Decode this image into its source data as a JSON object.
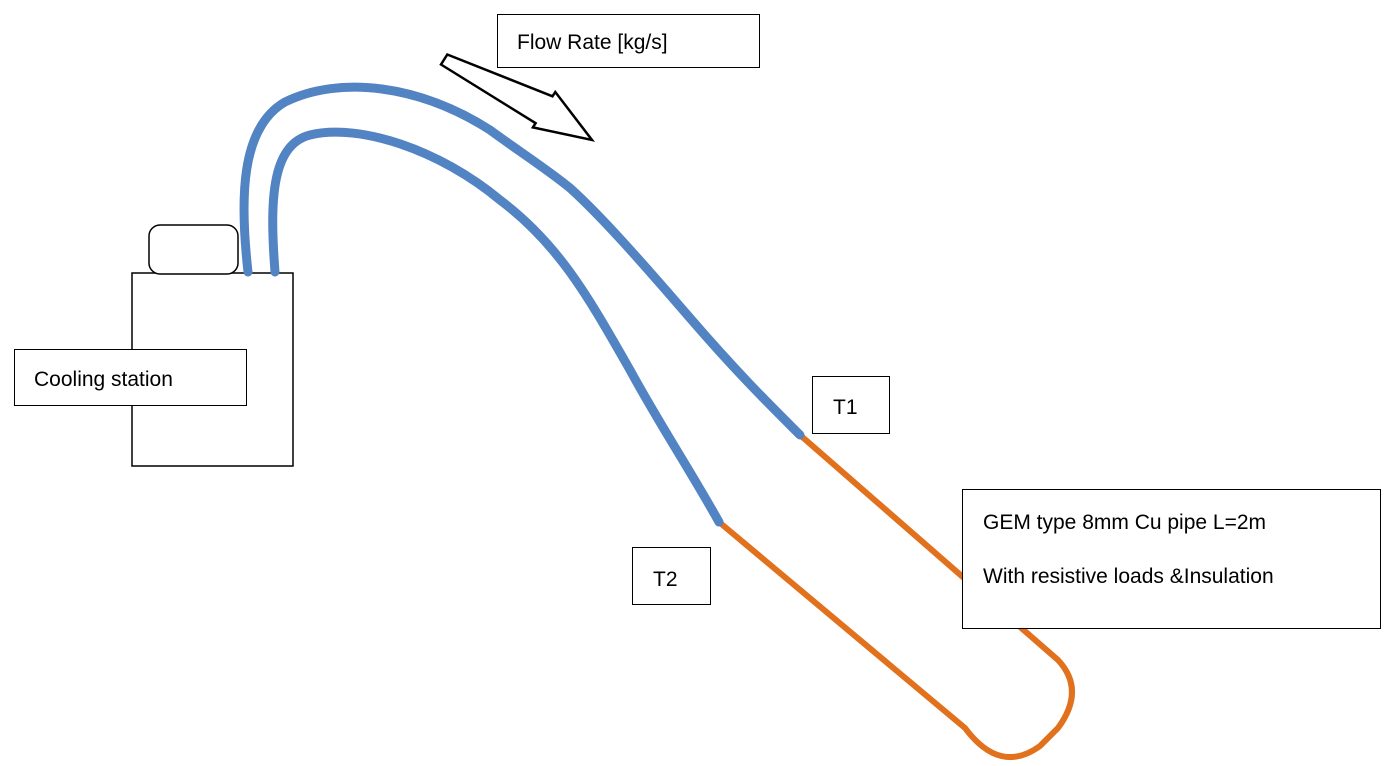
{
  "labels": {
    "flow_rate": "Flow Rate [kg/s]",
    "cooling_station": "Cooling station",
    "t1": "T1",
    "t2": "T2",
    "pipe_line1": "GEM type 8mm Cu pipe L=2m",
    "pipe_line2": "With resistive loads &Insulation"
  },
  "colors": {
    "cooling_hose": "#5283c2",
    "copper_pipe": "#e2711d",
    "outline": "#000000",
    "background": "#ffffff"
  },
  "icons": {
    "flow_direction": "arrow-icon"
  }
}
